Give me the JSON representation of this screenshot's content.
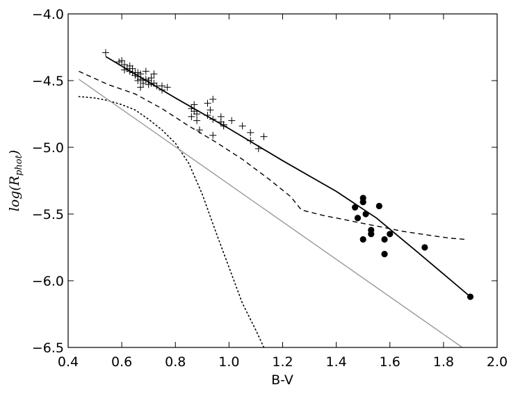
{
  "chart_data": {
    "type": "scatter",
    "title": "",
    "xlabel": "B-V",
    "ylabel": "log(R",
    "ylabel_sub": "phot",
    "ylabel_close": ")",
    "xlim": [
      0.4,
      2.0
    ],
    "ylim": [
      -6.5,
      -4.0
    ],
    "x_ticks": [
      0.4,
      0.6,
      0.8,
      1.0,
      1.2,
      1.4,
      1.6,
      1.8,
      2.0
    ],
    "y_ticks": [
      -6.5,
      -6.0,
      -5.5,
      -5.0,
      -4.5,
      -4.0
    ],
    "x_tick_labels": [
      "0.4",
      "0.6",
      "0.8",
      "1.0",
      "1.2",
      "1.4",
      "1.6",
      "1.8",
      "2.0"
    ],
    "y_tick_labels": [
      "−6.5",
      "−6.0",
      "−5.5",
      "−5.0",
      "−4.5",
      "−4.0"
    ],
    "grid": false,
    "legend": "none",
    "series": [
      {
        "marker": "plus",
        "color": "#000000",
        "points": [
          [
            0.54,
            -4.29
          ],
          [
            0.59,
            -4.36
          ],
          [
            0.6,
            -4.35
          ],
          [
            0.61,
            -4.38
          ],
          [
            0.61,
            -4.42
          ],
          [
            0.62,
            -4.41
          ],
          [
            0.63,
            -4.39
          ],
          [
            0.63,
            -4.43
          ],
          [
            0.64,
            -4.41
          ],
          [
            0.64,
            -4.44
          ],
          [
            0.65,
            -4.44
          ],
          [
            0.65,
            -4.46
          ],
          [
            0.66,
            -4.44
          ],
          [
            0.66,
            -4.47
          ],
          [
            0.66,
            -4.5
          ],
          [
            0.67,
            -4.45
          ],
          [
            0.67,
            -4.49
          ],
          [
            0.67,
            -4.55
          ],
          [
            0.68,
            -4.5
          ],
          [
            0.68,
            -4.52
          ],
          [
            0.69,
            -4.43
          ],
          [
            0.69,
            -4.49
          ],
          [
            0.7,
            -4.5
          ],
          [
            0.7,
            -4.53
          ],
          [
            0.71,
            -4.48
          ],
          [
            0.71,
            -4.52
          ],
          [
            0.72,
            -4.45
          ],
          [
            0.72,
            -4.52
          ],
          [
            0.73,
            -4.54
          ],
          [
            0.75,
            -4.54
          ],
          [
            0.75,
            -4.57
          ],
          [
            0.77,
            -4.55
          ],
          [
            0.86,
            -4.71
          ],
          [
            0.86,
            -4.77
          ],
          [
            0.87,
            -4.68
          ],
          [
            0.87,
            -4.73
          ],
          [
            0.88,
            -4.75
          ],
          [
            0.88,
            -4.8
          ],
          [
            0.89,
            -4.87
          ],
          [
            0.92,
            -4.67
          ],
          [
            0.92,
            -4.76
          ],
          [
            0.93,
            -4.72
          ],
          [
            0.94,
            -4.64
          ],
          [
            0.94,
            -4.79
          ],
          [
            0.94,
            -4.91
          ],
          [
            0.97,
            -4.77
          ],
          [
            0.97,
            -4.81
          ],
          [
            0.98,
            -4.83
          ],
          [
            0.98,
            -4.84
          ],
          [
            1.01,
            -4.8
          ],
          [
            1.05,
            -4.84
          ],
          [
            1.08,
            -4.89
          ],
          [
            1.08,
            -4.95
          ],
          [
            1.11,
            -5.01
          ],
          [
            1.13,
            -4.92
          ]
        ]
      },
      {
        "marker": "circle",
        "color": "#000000",
        "points": [
          [
            1.47,
            -5.45
          ],
          [
            1.48,
            -5.53
          ],
          [
            1.5,
            -5.38
          ],
          [
            1.5,
            -5.41
          ],
          [
            1.5,
            -5.69
          ],
          [
            1.51,
            -5.5
          ],
          [
            1.53,
            -5.62
          ],
          [
            1.53,
            -5.65
          ],
          [
            1.56,
            -5.44
          ],
          [
            1.58,
            -5.69
          ],
          [
            1.58,
            -5.8
          ],
          [
            1.6,
            -5.65
          ],
          [
            1.73,
            -5.75
          ],
          [
            1.9,
            -6.12
          ]
        ]
      },
      {
        "line": "solid",
        "color": "#000000",
        "width": 1.8,
        "points": [
          [
            0.54,
            -4.32
          ],
          [
            0.8,
            -4.63
          ],
          [
            1.0,
            -4.86
          ],
          [
            1.2,
            -5.1
          ],
          [
            1.4,
            -5.33
          ],
          [
            1.55,
            -5.53
          ],
          [
            1.7,
            -5.78
          ],
          [
            1.9,
            -6.12
          ]
        ]
      },
      {
        "line": "dashed",
        "color": "#000000",
        "width": 1.4,
        "points": [
          [
            0.44,
            -4.43
          ],
          [
            0.55,
            -4.53
          ],
          [
            0.65,
            -4.6
          ],
          [
            0.75,
            -4.71
          ],
          [
            0.85,
            -4.84
          ],
          [
            0.95,
            -4.96
          ],
          [
            1.05,
            -5.09
          ],
          [
            1.15,
            -5.24
          ],
          [
            1.23,
            -5.37
          ],
          [
            1.27,
            -5.47
          ],
          [
            1.35,
            -5.51
          ],
          [
            1.45,
            -5.55
          ],
          [
            1.55,
            -5.59
          ],
          [
            1.65,
            -5.63
          ],
          [
            1.75,
            -5.66
          ],
          [
            1.82,
            -5.68
          ],
          [
            1.88,
            -5.69
          ]
        ]
      },
      {
        "line": "dotted",
        "color": "#000000",
        "width": 1.6,
        "points": [
          [
            0.44,
            -4.62
          ],
          [
            0.5,
            -4.63
          ],
          [
            0.55,
            -4.65
          ],
          [
            0.6,
            -4.68
          ],
          [
            0.65,
            -4.72
          ],
          [
            0.7,
            -4.79
          ],
          [
            0.75,
            -4.87
          ],
          [
            0.8,
            -4.97
          ],
          [
            0.85,
            -5.12
          ],
          [
            0.9,
            -5.35
          ],
          [
            0.95,
            -5.63
          ],
          [
            1.0,
            -5.9
          ],
          [
            1.05,
            -6.17
          ],
          [
            1.1,
            -6.37
          ],
          [
            1.13,
            -6.5
          ]
        ]
      },
      {
        "line": "solid",
        "color": "#999999",
        "width": 1.4,
        "points": [
          [
            0.44,
            -4.49
          ],
          [
            1.87,
            -6.5
          ]
        ]
      }
    ]
  }
}
